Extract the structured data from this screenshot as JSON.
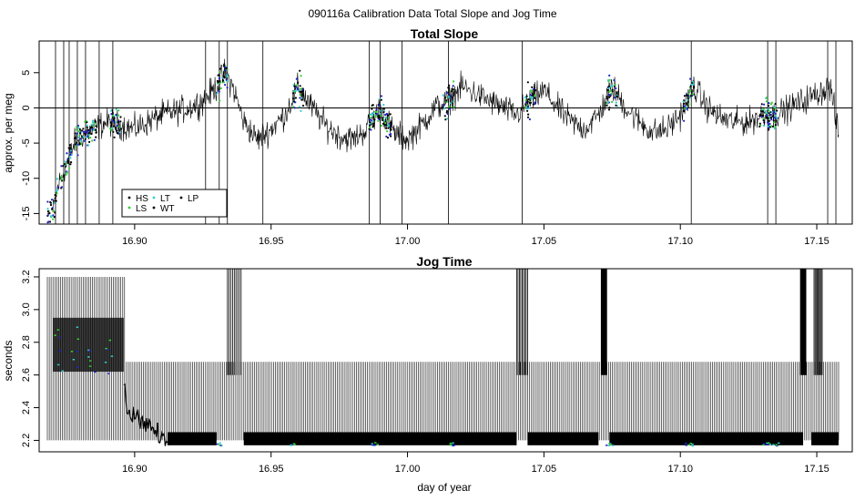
{
  "main_title": "090116a   Calibration Data Total Slope and Jog Time",
  "x_axis_label": "day of year",
  "chart_data": [
    {
      "type": "line",
      "title": "Total Slope",
      "ylabel": "approx. per meg",
      "xlim": [
        16.865,
        17.163
      ],
      "ylim": [
        -16.5,
        9.5
      ],
      "xticks": [
        16.9,
        16.95,
        17.0,
        17.05,
        17.1,
        17.15
      ],
      "xtick_labels": [
        "16.90",
        "16.95",
        "17.00",
        "17.05",
        "17.10",
        "17.15"
      ],
      "yticks": [
        -15,
        -10,
        -5,
        0,
        5
      ],
      "ytick_labels": [
        "-15",
        "-10",
        "-5",
        "0",
        "5"
      ],
      "reference_line": 0,
      "series": [
        {
          "name": "HS",
          "color": "#000000",
          "x": [
            16.87,
            16.872,
            16.875,
            16.878,
            16.88,
            16.885,
            16.89,
            16.895,
            16.9,
            16.905,
            16.91,
            16.915,
            16.92,
            16.925,
            16.93,
            16.933,
            16.936,
            16.94,
            16.945,
            16.95,
            16.955,
            16.96,
            16.965,
            16.97,
            16.975,
            16.98,
            16.985,
            16.99,
            16.995,
            17.0,
            17.005,
            17.01,
            17.015,
            17.02,
            17.025,
            17.03,
            17.035,
            17.04,
            17.045,
            17.05,
            17.055,
            17.06,
            17.065,
            17.07,
            17.075,
            17.08,
            17.085,
            17.09,
            17.095,
            17.1,
            17.105,
            17.11,
            17.115,
            17.12,
            17.125,
            17.13,
            17.135,
            17.14,
            17.145,
            17.15,
            17.155,
            17.158
          ],
          "y": [
            -15,
            -11,
            -8,
            -5,
            -4,
            -3,
            -2,
            -2.5,
            -3,
            -2,
            -1,
            -0.5,
            0,
            1,
            3,
            5,
            3,
            -2,
            -4.5,
            -3,
            -1,
            3,
            0,
            -2.5,
            -4,
            -4.5,
            -3,
            0,
            -3.5,
            -4.5,
            -2.5,
            0,
            1,
            3,
            2,
            1,
            0,
            -1,
            1,
            2.5,
            0,
            -2,
            -3,
            -1,
            3,
            0,
            -2,
            -3.5,
            -3,
            -1,
            3,
            0,
            -1.5,
            -2,
            -2,
            -1,
            -1,
            0,
            1,
            2,
            3,
            -4
          ]
        }
      ],
      "calibration_series": [
        {
          "name": "LS",
          "color": "#33cc33"
        },
        {
          "name": "LT",
          "color": "#33cccc"
        },
        {
          "name": "WT",
          "color": "#000000"
        },
        {
          "name": "LP",
          "color": "#000000"
        }
      ],
      "legend": {
        "entries": [
          "HS",
          "LS",
          "LT",
          "WT",
          "LP"
        ],
        "placement": "bottom-left"
      }
    },
    {
      "type": "line",
      "title": "Jog Time",
      "ylabel": "seconds",
      "xlim": [
        16.865,
        17.163
      ],
      "ylim": [
        2.13,
        3.25
      ],
      "xticks": [
        16.9,
        16.95,
        17.0,
        17.05,
        17.1,
        17.15
      ],
      "xtick_labels": [
        "16.90",
        "16.95",
        "17.00",
        "17.05",
        "17.10",
        "17.15"
      ],
      "yticks": [
        2.2,
        2.4,
        2.6,
        2.8,
        3.0,
        3.2
      ],
      "ytick_labels": [
        "2.2",
        "2.4",
        "2.6",
        "2.8",
        "3.0",
        "3.2"
      ],
      "oscillation_band": {
        "low": 2.17,
        "high": 2.68
      },
      "series": [
        {
          "name": "jog time",
          "x": [
            16.87,
            16.875,
            16.88,
            16.885,
            16.89,
            16.895,
            16.897,
            16.9,
            16.905,
            16.91,
            16.915,
            16.93,
            16.935,
            16.938,
            16.942,
            16.95,
            16.99,
            17.02,
            17.03,
            17.04,
            17.042,
            17.044,
            17.05,
            17.07,
            17.072,
            17.08,
            17.1,
            17.14,
            17.145,
            17.15,
            17.158
          ],
          "y": [
            2.8,
            2.7,
            2.8,
            2.75,
            2.7,
            2.65,
            2.4,
            2.35,
            2.3,
            2.2,
            2.2,
            2.2,
            2.75,
            2.7,
            2.2,
            2.2,
            2.2,
            2.2,
            2.2,
            2.2,
            2.8,
            2.2,
            2.2,
            2.2,
            2.9,
            2.2,
            2.2,
            2.2,
            3.0,
            2.2,
            2.2
          ]
        }
      ]
    }
  ]
}
